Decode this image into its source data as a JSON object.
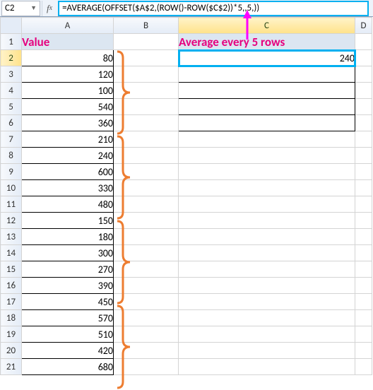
{
  "formula_bar": {
    "cell_ref": "C2",
    "formula": "=AVERAGE(OFFSET($A$2,(ROW()-ROW($C$2))*5,,5,))"
  },
  "columns": [
    "",
    "A",
    "B",
    "C",
    "D"
  ],
  "header_row": {
    "value": "Value",
    "avg": "Average every 5 rows"
  },
  "col_a_values": [
    80,
    120,
    100,
    540,
    360,
    210,
    240,
    600,
    330,
    480,
    150,
    180,
    300,
    270,
    390,
    450,
    570,
    510,
    420,
    680
  ],
  "col_c_values": [
    240,
    "",
    "",
    "",
    ""
  ],
  "selected_col_index": 3,
  "selected_row_index": 2,
  "brace_color": "#ed7d31",
  "arrow_color": "#ff00ff",
  "data_border_color": "#000000"
}
